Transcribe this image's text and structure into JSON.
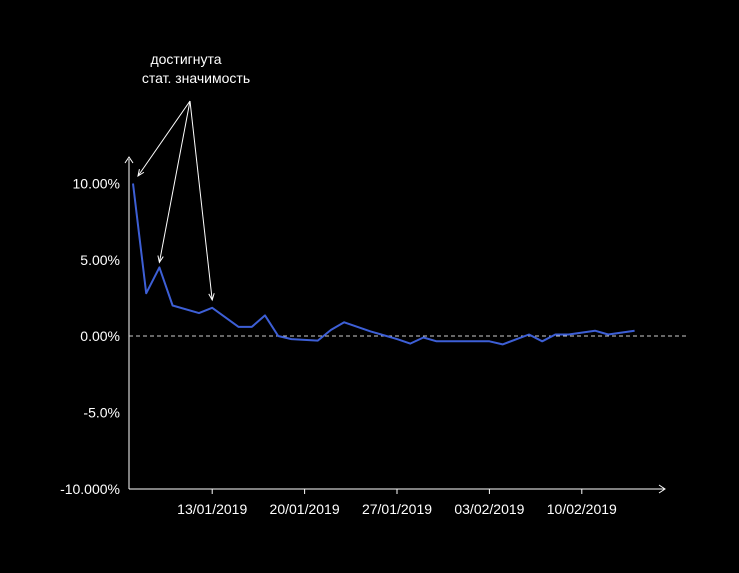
{
  "chart_data": {
    "type": "line",
    "title": "",
    "xlabel": "",
    "ylabel": "",
    "grid": false,
    "x_start": "2019-01-07",
    "x_end": "2019-02-16",
    "ylim": [
      -10,
      10.5
    ],
    "y_ticks": [
      {
        "value": 10,
        "label": "10.00%"
      },
      {
        "value": 5,
        "label": "5.00%"
      },
      {
        "value": 0,
        "label": "0.00%"
      },
      {
        "value": -5,
        "label": "-5.0%"
      },
      {
        "value": -10,
        "label": "-10.000%"
      }
    ],
    "x_ticks": [
      {
        "date": "2019-01-13",
        "label": "13/01/2019"
      },
      {
        "date": "2019-01-20",
        "label": "20/01/2019"
      },
      {
        "date": "2019-01-27",
        "label": "27/01/2019"
      },
      {
        "date": "2019-02-03",
        "label": "03/02/2019"
      },
      {
        "date": "2019-02-10",
        "label": "10/02/2019"
      }
    ],
    "reference_line": {
      "value": 0,
      "style": "dashed"
    },
    "series": [
      {
        "color": "#3d5fd6",
        "points": [
          {
            "x": "2019-01-07",
            "y": 10.0
          },
          {
            "x": "2019-01-08",
            "y": 2.8
          },
          {
            "x": "2019-01-09",
            "y": 4.5
          },
          {
            "x": "2019-01-10",
            "y": 2.0
          },
          {
            "x": "2019-01-12",
            "y": 1.5
          },
          {
            "x": "2019-01-13",
            "y": 1.85
          },
          {
            "x": "2019-01-15",
            "y": 0.6
          },
          {
            "x": "2019-01-16",
            "y": 0.6
          },
          {
            "x": "2019-01-17",
            "y": 1.35
          },
          {
            "x": "2019-01-18",
            "y": 0.0
          },
          {
            "x": "2019-01-19",
            "y": -0.2
          },
          {
            "x": "2019-01-21",
            "y": -0.3
          },
          {
            "x": "2019-01-22",
            "y": 0.4
          },
          {
            "x": "2019-01-23",
            "y": 0.9
          },
          {
            "x": "2019-01-25",
            "y": 0.3
          },
          {
            "x": "2019-01-27",
            "y": -0.2
          },
          {
            "x": "2019-01-28",
            "y": -0.5
          },
          {
            "x": "2019-01-29",
            "y": -0.1
          },
          {
            "x": "2019-01-30",
            "y": -0.35
          },
          {
            "x": "2019-02-01",
            "y": -0.35
          },
          {
            "x": "2019-02-03",
            "y": -0.35
          },
          {
            "x": "2019-02-04",
            "y": -0.55
          },
          {
            "x": "2019-02-06",
            "y": 0.1
          },
          {
            "x": "2019-02-07",
            "y": -0.35
          },
          {
            "x": "2019-02-08",
            "y": 0.1
          },
          {
            "x": "2019-02-09",
            "y": 0.1
          },
          {
            "x": "2019-02-11",
            "y": 0.35
          },
          {
            "x": "2019-02-12",
            "y": 0.1
          },
          {
            "x": "2019-02-14",
            "y": 0.35
          }
        ]
      }
    ],
    "annotation": {
      "lines": [
        "достигнута",
        "стат. значимость"
      ],
      "targets": [
        {
          "x": "2019-01-07",
          "y": 10.5
        },
        {
          "x": "2019-01-09",
          "y": 4.5
        },
        {
          "x": "2019-01-13",
          "y": 1.85
        }
      ]
    }
  },
  "colors": {
    "background": "#000000",
    "axis": "#ffffff",
    "line": "#3d5fd6",
    "reference": "#cccccc"
  }
}
